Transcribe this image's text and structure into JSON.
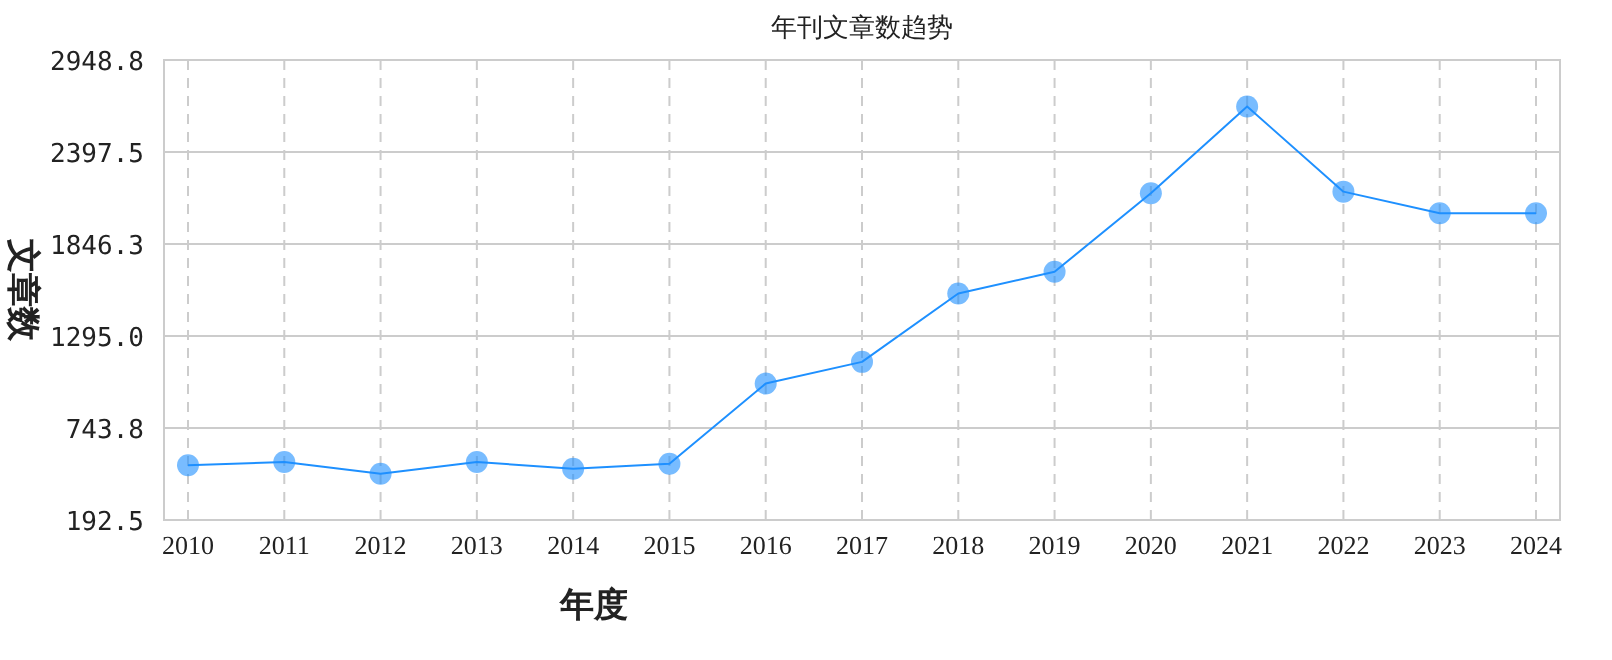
{
  "chart_data": {
    "type": "line",
    "title": "年刊文章数趋势",
    "xlabel": "年度",
    "ylabel": "文章数",
    "categories": [
      "2010",
      "2011",
      "2012",
      "2013",
      "2014",
      "2015",
      "2016",
      "2017",
      "2018",
      "2019",
      "2020",
      "2021",
      "2022",
      "2023",
      "2024"
    ],
    "series": [
      {
        "color": "#1e90ff",
        "values": [
          520,
          540,
          470,
          540,
          500,
          530,
          1010,
          1140,
          1550,
          1680,
          2150,
          2670,
          2160,
          2030,
          2030
        ]
      }
    ],
    "marker": "circle",
    "ylim": [
      192.5,
      2948.8
    ],
    "yticks": [
      {
        "value": 192.5,
        "label": "192.5"
      },
      {
        "value": 743.8,
        "label": "743.8"
      },
      {
        "value": 1295.0,
        "label": "1295.0"
      },
      {
        "value": 1846.3,
        "label": "1846.3"
      },
      {
        "value": 2397.5,
        "label": "2397.5"
      },
      {
        "value": 2948.8,
        "label": "2948.8"
      }
    ],
    "grid": true
  }
}
